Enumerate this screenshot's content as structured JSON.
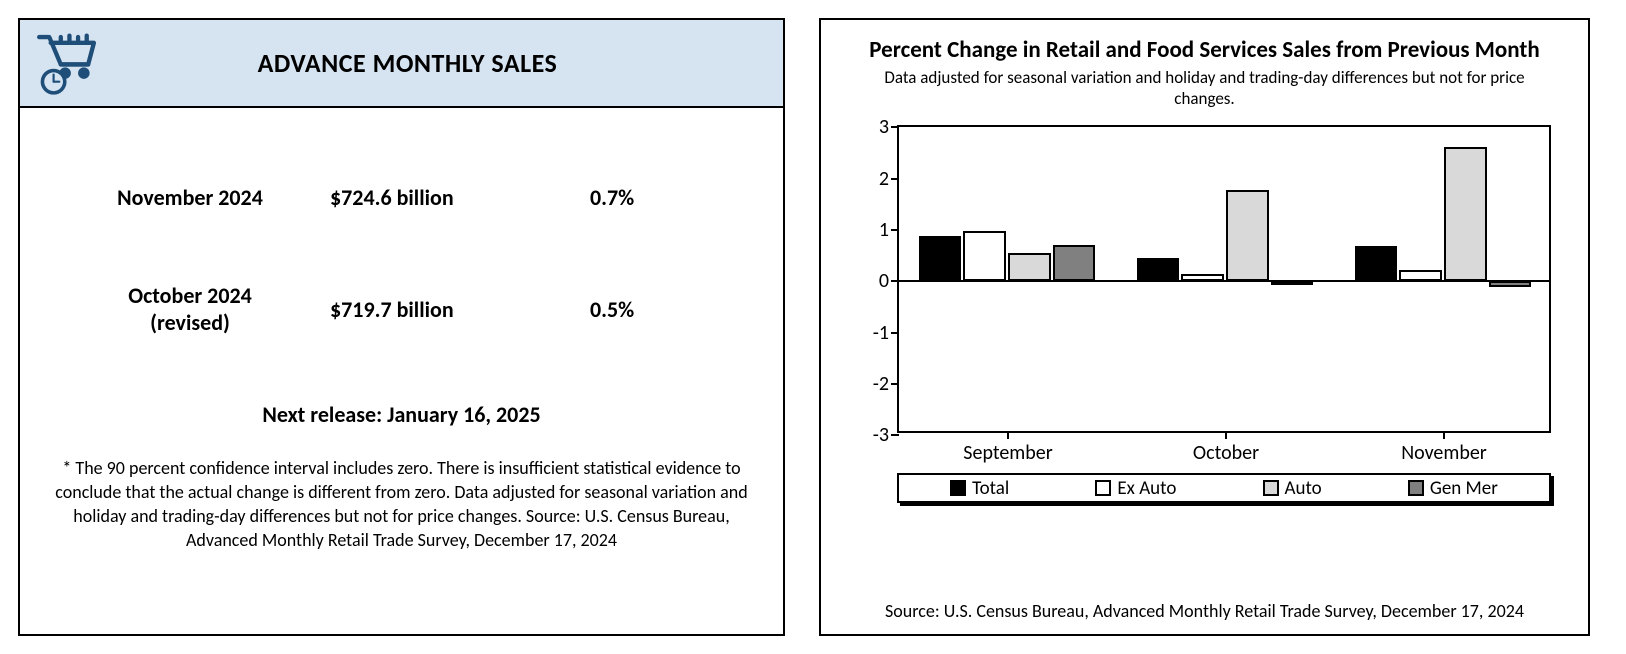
{
  "left": {
    "title": "ADVANCE MONTHLY SALES",
    "rows": [
      {
        "month": "November 2024",
        "month_line2": "",
        "value": "$724.6 billion",
        "pct": "0.7%"
      },
      {
        "month": "October 2024",
        "month_line2": "(revised)",
        "value": "$719.7 billion",
        "pct": "0.5%"
      }
    ],
    "next_release": "Next release: January 16, 2025",
    "footnote": "* The 90 percent confidence interval includes zero. There is insufficient statistical evidence to conclude that the actual change is different from zero. Data adjusted for seasonal variation and holiday and trading-day differences but not for price changes. Source: U.S. Census Bureau, Advanced Monthly Retail Trade Survey, December 17, 2024"
  },
  "chart": {
    "type": "bar",
    "title": "Percent Change in Retail and Food Services Sales from Previous Month",
    "subtitle": "Data adjusted for seasonal variation and holiday and trading-day differences but not for price changes.",
    "categories": [
      "September",
      "October",
      "November"
    ],
    "series": [
      {
        "name": "Total",
        "color": "#000000",
        "values": [
          0.88,
          0.45,
          0.68
        ]
      },
      {
        "name": "Ex Auto",
        "color": "#ffffff",
        "values": [
          0.98,
          0.15,
          0.22
        ]
      },
      {
        "name": "Auto",
        "color": "#d9d9d9",
        "values": [
          0.55,
          1.78,
          2.62
        ]
      },
      {
        "name": "Gen Mer",
        "color": "#808080",
        "values": [
          0.7,
          0.0,
          -0.12
        ]
      }
    ],
    "ylim": [
      -3,
      3
    ],
    "ytick_step": 1,
    "axis_color": "#000000",
    "border_color": "#000000",
    "background_color": "#ffffff",
    "bar_border_color": "#000000",
    "bar_group_gap_ratio": 0.18,
    "title_fontsize": 23,
    "subtitle_fontsize": 17,
    "tick_fontsize": 20,
    "legend_fontsize": 19,
    "source_fontsize": 18,
    "source": "Source: U.S. Census Bureau, Advanced Monthly Retail Trade Survey, December 17, 2024"
  },
  "icon_color": "#1f4e79"
}
